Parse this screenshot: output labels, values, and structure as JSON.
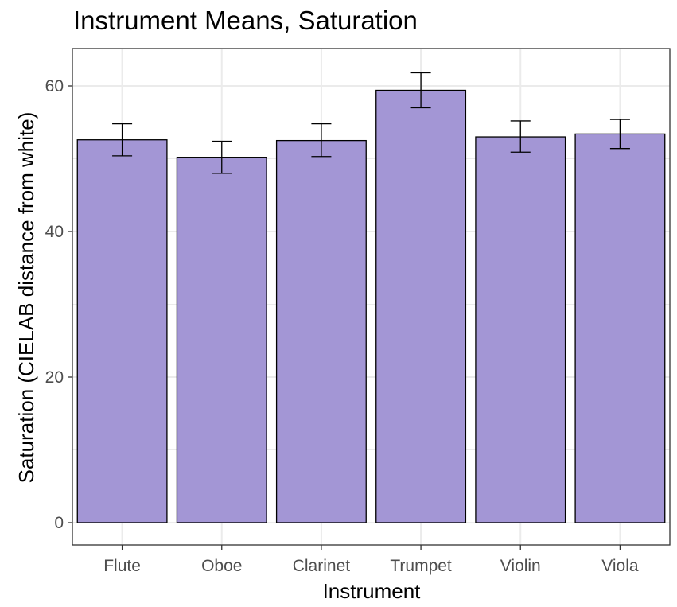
{
  "chart_data": {
    "type": "bar",
    "title": "Instrument Means, Saturation",
    "xlabel": "Instrument",
    "ylabel": "Saturation (CIELAB distance from white)",
    "categories": [
      "Flute",
      "Oboe",
      "Clarinet",
      "Trumpet",
      "Violin",
      "Viola"
    ],
    "values": [
      52.6,
      50.2,
      52.5,
      59.4,
      53.0,
      53.4
    ],
    "error_low": [
      50.4,
      48.0,
      50.3,
      57.0,
      50.9,
      51.4
    ],
    "error_high": [
      54.8,
      52.4,
      54.8,
      61.8,
      55.2,
      55.4
    ],
    "ylim": [
      -3.5,
      65
    ],
    "yticks": [
      0,
      20,
      40,
      60
    ],
    "grid": true,
    "legend": "none",
    "bar_fill": "#a396d5",
    "bar_stroke": "#000000",
    "grid_color": "#ebebeb",
    "panel_border": "#333333"
  }
}
